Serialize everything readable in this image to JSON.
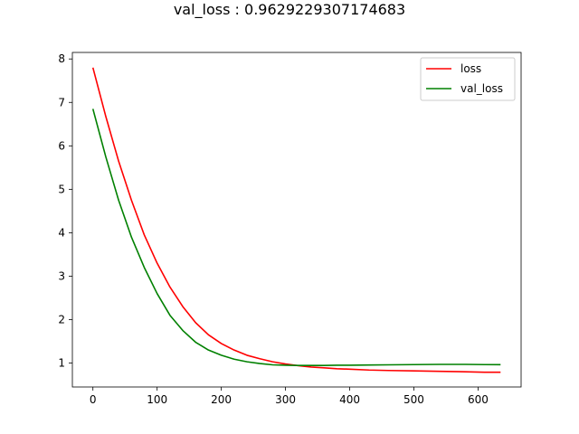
{
  "chart_data": {
    "type": "line",
    "title": "val_loss : 0.9629229307174683",
    "xlabel": "",
    "ylabel": "",
    "xlim": [
      -32,
      667
    ],
    "ylim": [
      0.45,
      8.15
    ],
    "xticks": [
      0,
      100,
      200,
      300,
      400,
      500,
      600
    ],
    "yticks": [
      1,
      2,
      3,
      4,
      5,
      6,
      7,
      8
    ],
    "grid": false,
    "legend_position": "top-right",
    "series": [
      {
        "name": "loss",
        "color": "#ff0000",
        "x": [
          0,
          20,
          40,
          60,
          80,
          100,
          120,
          140,
          160,
          180,
          200,
          220,
          240,
          260,
          280,
          300,
          320,
          340,
          360,
          380,
          400,
          430,
          460,
          500,
          540,
          580,
          610,
          635
        ],
        "y": [
          7.8,
          6.68,
          5.65,
          4.75,
          3.95,
          3.3,
          2.75,
          2.3,
          1.93,
          1.65,
          1.45,
          1.3,
          1.18,
          1.1,
          1.03,
          0.98,
          0.94,
          0.91,
          0.89,
          0.87,
          0.86,
          0.84,
          0.83,
          0.82,
          0.81,
          0.8,
          0.79,
          0.79
        ]
      },
      {
        "name": "val_loss",
        "color": "#008000",
        "x": [
          0,
          20,
          40,
          60,
          80,
          100,
          120,
          140,
          160,
          180,
          200,
          220,
          240,
          260,
          280,
          300,
          320,
          340,
          360,
          380,
          400,
          430,
          460,
          500,
          540,
          580,
          610,
          635
        ],
        "y": [
          6.85,
          5.75,
          4.75,
          3.9,
          3.2,
          2.6,
          2.1,
          1.75,
          1.48,
          1.3,
          1.18,
          1.09,
          1.03,
          0.99,
          0.96,
          0.95,
          0.945,
          0.945,
          0.945,
          0.95,
          0.95,
          0.955,
          0.96,
          0.965,
          0.97,
          0.97,
          0.965,
          0.963
        ]
      }
    ]
  }
}
